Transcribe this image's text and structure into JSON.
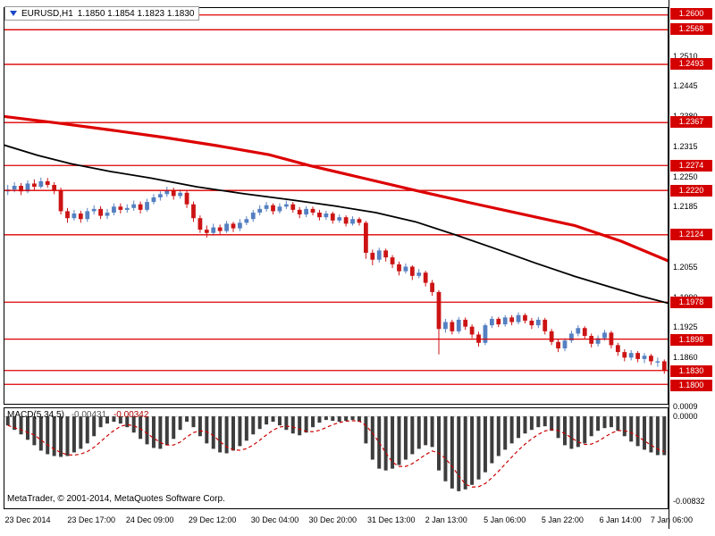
{
  "header": {
    "symbol_period": "EURUSD,H1",
    "ohlc_text": "1.1850 1.1854 1.1823 1.1830"
  },
  "footer": {
    "copyright": "MetaTrader, © 2001-2014, MetaQuotes Software Corp."
  },
  "colors": {
    "level_line": "#dd0000",
    "badge_bg": "#d40000",
    "badge_text": "#ffffff",
    "bull": "#5580c2",
    "bear": "#cc1414",
    "ma_slow": "#dd0000",
    "ma_fast": "#000000",
    "hist": "#3d3d3d",
    "signal": "#cc0000",
    "zero_line": "#aaaaaa"
  },
  "chart_data": {
    "type": "candlestick",
    "symbol": "EURUSD",
    "timeframe": "H1",
    "current_bar": {
      "open": 1.185,
      "high": 1.1854,
      "low": 1.1823,
      "close": 1.183
    },
    "price_axis": {
      "max": 1.2615,
      "min": 1.1758,
      "ticks": [
        1.251,
        1.2445,
        1.238,
        1.2315,
        1.225,
        1.2185,
        1.212,
        1.2055,
        1.199,
        1.1925,
        1.186
      ]
    },
    "levels": [
      1.26,
      1.2568,
      1.2493,
      1.2367,
      1.2274,
      1.222,
      1.2124,
      1.1978,
      1.1898,
      1.183,
      1.18
    ],
    "candles": [
      [
        1.2218,
        1.2232,
        1.221,
        1.2222
      ],
      [
        1.2222,
        1.2238,
        1.2216,
        1.223
      ],
      [
        1.223,
        1.2236,
        1.221,
        1.2218
      ],
      [
        1.2218,
        1.2242,
        1.2214,
        1.2235
      ],
      [
        1.2235,
        1.2244,
        1.222,
        1.2228
      ],
      [
        1.2228,
        1.2248,
        1.2224,
        1.224
      ],
      [
        1.224,
        1.2247,
        1.2226,
        1.2232
      ],
      [
        1.2232,
        1.2238,
        1.2212,
        1.222
      ],
      [
        1.222,
        1.2226,
        1.2168,
        1.2175
      ],
      [
        1.2175,
        1.2182,
        1.215,
        1.216
      ],
      [
        1.216,
        1.2178,
        1.2155,
        1.217
      ],
      [
        1.217,
        1.2176,
        1.215,
        1.2158
      ],
      [
        1.2158,
        1.2182,
        1.2152,
        1.2175
      ],
      [
        1.2175,
        1.2188,
        1.2168,
        1.218
      ],
      [
        1.218,
        1.2186,
        1.2158,
        1.2165
      ],
      [
        1.2165,
        1.218,
        1.2158,
        1.2172
      ],
      [
        1.2172,
        1.2192,
        1.2166,
        1.2185
      ],
      [
        1.2185,
        1.2192,
        1.217,
        1.2178
      ],
      [
        1.2178,
        1.219,
        1.2172,
        1.2182
      ],
      [
        1.2182,
        1.2198,
        1.2176,
        1.219
      ],
      [
        1.219,
        1.2196,
        1.217,
        1.2178
      ],
      [
        1.2178,
        1.2202,
        1.2174,
        1.2195
      ],
      [
        1.2195,
        1.2212,
        1.219,
        1.2205
      ],
      [
        1.2205,
        1.2218,
        1.2198,
        1.2212
      ],
      [
        1.2212,
        1.2228,
        1.2206,
        1.222
      ],
      [
        1.222,
        1.2226,
        1.22,
        1.2208
      ],
      [
        1.2208,
        1.2222,
        1.2202,
        1.2215
      ],
      [
        1.2215,
        1.222,
        1.2182,
        1.219
      ],
      [
        1.219,
        1.2196,
        1.2152,
        1.216
      ],
      [
        1.216,
        1.2166,
        1.2128,
        1.2135
      ],
      [
        1.2135,
        1.2144,
        1.2118,
        1.2128
      ],
      [
        1.2128,
        1.2148,
        1.2122,
        1.214
      ],
      [
        1.214,
        1.2146,
        1.2124,
        1.2132
      ],
      [
        1.2132,
        1.2154,
        1.2128,
        1.2148
      ],
      [
        1.2148,
        1.2152,
        1.213,
        1.2138
      ],
      [
        1.2138,
        1.2158,
        1.2132,
        1.215
      ],
      [
        1.215,
        1.2164,
        1.2145,
        1.2158
      ],
      [
        1.2158,
        1.2178,
        1.2152,
        1.2172
      ],
      [
        1.2172,
        1.2188,
        1.2166,
        1.218
      ],
      [
        1.218,
        1.2195,
        1.2174,
        1.2188
      ],
      [
        1.2188,
        1.2192,
        1.2168,
        1.2175
      ],
      [
        1.2175,
        1.2192,
        1.217,
        1.2185
      ],
      [
        1.2185,
        1.2198,
        1.218,
        1.219
      ],
      [
        1.219,
        1.2195,
        1.2172,
        1.2178
      ],
      [
        1.2178,
        1.2184,
        1.216,
        1.2168
      ],
      [
        1.2168,
        1.2186,
        1.2162,
        1.218
      ],
      [
        1.218,
        1.2185,
        1.2166,
        1.2172
      ],
      [
        1.2172,
        1.2178,
        1.2155,
        1.2162
      ],
      [
        1.2162,
        1.2176,
        1.2156,
        1.217
      ],
      [
        1.217,
        1.2174,
        1.2148,
        1.2155
      ],
      [
        1.2155,
        1.2168,
        1.215,
        1.2162
      ],
      [
        1.2162,
        1.2166,
        1.2142,
        1.2148
      ],
      [
        1.2148,
        1.2164,
        1.2144,
        1.2158
      ],
      [
        1.2158,
        1.2162,
        1.2144,
        1.215
      ],
      [
        1.215,
        1.2154,
        1.2072,
        1.2085
      ],
      [
        1.2085,
        1.2092,
        1.2058,
        1.207
      ],
      [
        1.207,
        1.2096,
        1.2064,
        1.209
      ],
      [
        1.209,
        1.2094,
        1.2066,
        1.2075
      ],
      [
        1.2075,
        1.208,
        1.2052,
        1.206
      ],
      [
        1.206,
        1.2066,
        1.2036,
        1.2045
      ],
      [
        1.2045,
        1.2062,
        1.204,
        1.2055
      ],
      [
        1.2055,
        1.2058,
        1.2026,
        1.2035
      ],
      [
        1.2035,
        1.205,
        1.203,
        1.2042
      ],
      [
        1.2042,
        1.2046,
        1.2012,
        1.202
      ],
      [
        1.202,
        1.2026,
        1.1992,
        1.2
      ],
      [
        1.2,
        1.2004,
        1.1865,
        1.192
      ],
      [
        1.192,
        1.1942,
        1.1912,
        1.1935
      ],
      [
        1.1935,
        1.194,
        1.1908,
        1.1915
      ],
      [
        1.1915,
        1.1946,
        1.191,
        1.194
      ],
      [
        1.194,
        1.1945,
        1.1918,
        1.1925
      ],
      [
        1.1925,
        1.193,
        1.19,
        1.1908
      ],
      [
        1.1908,
        1.1914,
        1.1882,
        1.189
      ],
      [
        1.189,
        1.1932,
        1.1885,
        1.1928
      ],
      [
        1.1928,
        1.1948,
        1.1922,
        1.1942
      ],
      [
        1.1942,
        1.1946,
        1.1924,
        1.193
      ],
      [
        1.193,
        1.195,
        1.1925,
        1.1945
      ],
      [
        1.1945,
        1.195,
        1.1928,
        1.1935
      ],
      [
        1.1935,
        1.1956,
        1.193,
        1.195
      ],
      [
        1.195,
        1.1954,
        1.1932,
        1.1938
      ],
      [
        1.1938,
        1.1944,
        1.192,
        1.1928
      ],
      [
        1.1928,
        1.1946,
        1.1922,
        1.194
      ],
      [
        1.194,
        1.1944,
        1.1908,
        1.1915
      ],
      [
        1.1915,
        1.192,
        1.1885,
        1.1892
      ],
      [
        1.1892,
        1.1898,
        1.187,
        1.1878
      ],
      [
        1.1878,
        1.19,
        1.1872,
        1.1895
      ],
      [
        1.1895,
        1.1916,
        1.189,
        1.191
      ],
      [
        1.191,
        1.1928,
        1.1904,
        1.1922
      ],
      [
        1.1922,
        1.1926,
        1.1898,
        1.1905
      ],
      [
        1.1905,
        1.191,
        1.188,
        1.1888
      ],
      [
        1.1888,
        1.1906,
        1.1882,
        1.19
      ],
      [
        1.19,
        1.1918,
        1.1895,
        1.1912
      ],
      [
        1.1912,
        1.1916,
        1.1878,
        1.1885
      ],
      [
        1.1885,
        1.189,
        1.1862,
        1.187
      ],
      [
        1.187,
        1.1876,
        1.185,
        1.1858
      ],
      [
        1.1858,
        1.1874,
        1.1852,
        1.1868
      ],
      [
        1.1868,
        1.1872,
        1.1848,
        1.1855
      ],
      [
        1.1855,
        1.1868,
        1.1846,
        1.1862
      ],
      [
        1.1862,
        1.1866,
        1.1842,
        1.185
      ],
      [
        1.185,
        1.1858,
        1.1838,
        1.185
      ],
      [
        1.185,
        1.1854,
        1.1823,
        1.183
      ]
    ],
    "ma_slow_red": [
      [
        0,
        1.238
      ],
      [
        0.08,
        1.2366
      ],
      [
        0.16,
        1.2351
      ],
      [
        0.24,
        1.2335
      ],
      [
        0.32,
        1.2317
      ],
      [
        0.4,
        1.2297
      ],
      [
        0.46,
        1.2274
      ],
      [
        0.54,
        1.2247
      ],
      [
        0.62,
        1.222
      ],
      [
        0.7,
        1.2194
      ],
      [
        0.78,
        1.2169
      ],
      [
        0.86,
        1.2144
      ],
      [
        0.93,
        1.211
      ],
      [
        1,
        1.2068
      ]
    ],
    "ma_fast_black": [
      [
        0,
        1.2318
      ],
      [
        0.05,
        1.2296
      ],
      [
        0.1,
        1.2278
      ],
      [
        0.16,
        1.2261
      ],
      [
        0.22,
        1.2247
      ],
      [
        0.29,
        1.2228
      ],
      [
        0.36,
        1.2213
      ],
      [
        0.43,
        1.22
      ],
      [
        0.5,
        1.2186
      ],
      [
        0.56,
        1.2172
      ],
      [
        0.62,
        1.2152
      ],
      [
        0.68,
        1.2124
      ],
      [
        0.74,
        1.2094
      ],
      [
        0.8,
        1.2063
      ],
      [
        0.86,
        1.2034
      ],
      [
        0.92,
        1.2008
      ],
      [
        0.96,
        1.1991
      ],
      [
        1,
        1.1976
      ]
    ],
    "macd": {
      "label": "MACD(5,34,5)",
      "main_value": "-0.00431",
      "signal_value": "-0.00342",
      "axis": {
        "max": 0.0009,
        "min": -0.0102,
        "labels": [
          "0.0009",
          "0.0000",
          "-0.00832"
        ]
      },
      "values": [
        -0.001,
        -0.0015,
        -0.002,
        -0.0026,
        -0.0032,
        -0.0038,
        -0.0042,
        -0.0044,
        -0.0045,
        -0.0044,
        -0.004,
        -0.0036,
        -0.003,
        -0.0022,
        -0.0012,
        -0.0008,
        -0.0006,
        -0.0008,
        -0.0012,
        -0.0018,
        -0.0025,
        -0.0031,
        -0.0035,
        -0.0036,
        -0.0032,
        -0.0025,
        -0.0015,
        -0.0006,
        -0.0012,
        -0.0022,
        -0.003,
        -0.0036,
        -0.004,
        -0.0041,
        -0.0038,
        -0.0033,
        -0.0027,
        -0.002,
        -0.0014,
        -0.0009,
        -0.0006,
        -0.001,
        -0.0015,
        -0.0019,
        -0.0021,
        -0.0018,
        -0.0012,
        -0.0007,
        -0.0004,
        -0.0005,
        -0.0006,
        -0.0005,
        -0.0004,
        -0.0006,
        -0.003,
        -0.0048,
        -0.0058,
        -0.006,
        -0.0058,
        -0.0054,
        -0.0048,
        -0.0042,
        -0.0036,
        -0.0032,
        -0.0034,
        -0.006,
        -0.0072,
        -0.008,
        -0.0083,
        -0.0081,
        -0.0076,
        -0.007,
        -0.0062,
        -0.0052,
        -0.0044,
        -0.0037,
        -0.003,
        -0.0024,
        -0.0019,
        -0.0015,
        -0.0012,
        -0.0011,
        -0.0016,
        -0.0024,
        -0.0032,
        -0.0036,
        -0.0034,
        -0.003,
        -0.0022,
        -0.0016,
        -0.0013,
        -0.0012,
        -0.0016,
        -0.0022,
        -0.0028,
        -0.0033,
        -0.0037,
        -0.004,
        -0.0043,
        -0.0043
      ]
    },
    "x_labels": [
      [
        "23 Dec 2014",
        0.002
      ],
      [
        "23 Dec 17:00",
        0.096
      ],
      [
        "24 Dec 09:00",
        0.184
      ],
      [
        "29 Dec 12:00",
        0.278
      ],
      [
        "30 Dec 04:00",
        0.372
      ],
      [
        "30 Dec 20:00",
        0.459
      ],
      [
        "31 Dec 13:00",
        0.547
      ],
      [
        "2 Jan 13:00",
        0.634
      ],
      [
        "5 Jan 06:00",
        0.722
      ],
      [
        "5 Jan 22:00",
        0.809
      ],
      [
        "6 Jan 14:00",
        0.896
      ],
      [
        "7 Jan 06:00",
        0.973
      ]
    ]
  }
}
